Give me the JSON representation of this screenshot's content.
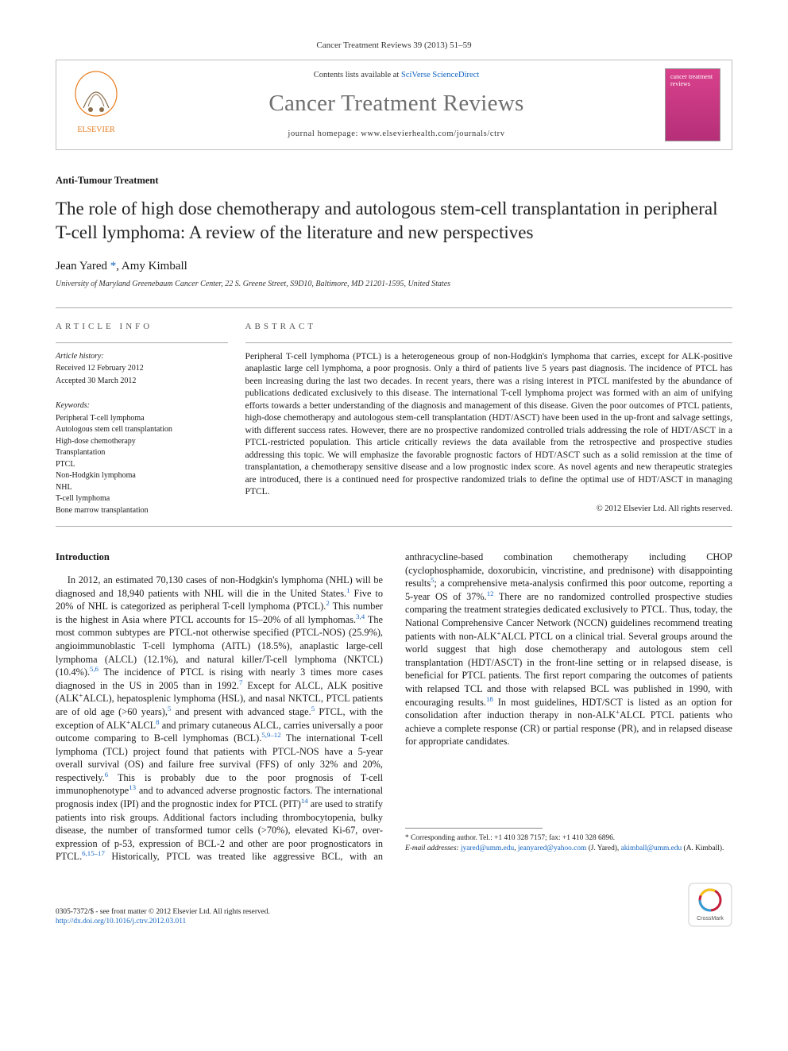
{
  "journal_ref": "Cancer Treatment Reviews 39 (2013) 51–59",
  "masthead": {
    "contents_prefix": "Contents lists available at ",
    "contents_link": "SciVerse ScienceDirect",
    "journal_name": "Cancer Treatment Reviews",
    "homepage_prefix": "journal homepage: ",
    "homepage_url": "www.elsevierhealth.com/journals/ctrv",
    "cover_title": "cancer treatment reviews"
  },
  "article_type": "Anti-Tumour Treatment",
  "title": "The role of high dose chemotherapy and autologous stem-cell transplantation in peripheral T-cell lymphoma: A review of the literature and new perspectives",
  "authors_html": "Jean Yared <a class='corr' href='#'>*</a>, Amy Kimball",
  "affiliation": "University of Maryland Greenebaum Cancer Center, 22 S. Greene Street, S9D10, Baltimore, MD 21201-1595, United States",
  "info_heading": "ARTICLE INFO",
  "abs_heading": "ABSTRACT",
  "history": {
    "label": "Article history:",
    "received": "Received 12 February 2012",
    "accepted": "Accepted 30 March 2012"
  },
  "keywords_label": "Keywords:",
  "keywords": [
    "Peripheral T-cell lymphoma",
    "Autologous stem cell transplantation",
    "High-dose chemotherapy",
    "Transplantation",
    "PTCL",
    "Non-Hodgkin lymphoma",
    "NHL",
    "T-cell lymphoma",
    "Bone marrow transplantation"
  ],
  "abstract": "Peripheral T-cell lymphoma (PTCL) is a heterogeneous group of non-Hodgkin's lymphoma that carries, except for ALK-positive anaplastic large cell lymphoma, a poor prognosis. Only a third of patients live 5 years past diagnosis. The incidence of PTCL has been increasing during the last two decades. In recent years, there was a rising interest in PTCL manifested by the abundance of publications dedicated exclusively to this disease. The international T-cell lymphoma project was formed with an aim of unifying efforts towards a better understanding of the diagnosis and management of this disease. Given the poor outcomes of PTCL patients, high-dose chemotherapy and autologous stem-cell transplantation (HDT/ASCT) have been used in the up-front and salvage settings, with different success rates. However, there are no prospective randomized controlled trials addressing the role of HDT/ASCT in a PTCL-restricted population. This article critically reviews the data available from the retrospective and prospective studies addressing this topic. We will emphasize the favorable prognostic factors of HDT/ASCT such as a solid remission at the time of transplantation, a chemotherapy sensitive disease and a low prognostic index score. As novel agents and new therapeutic strategies are introduced, there is a continued need for prospective randomized trials to define the optimal use of HDT/ASCT in managing PTCL.",
  "abs_copyright": "© 2012 Elsevier Ltd. All rights reserved.",
  "intro_heading": "Introduction",
  "intro_paragraph": "In 2012, an estimated 70,130 cases of non-Hodgkin's lymphoma (NHL) will be diagnosed and 18,940 patients with NHL will die in the United States.<sup>1</sup> Five to 20% of NHL is categorized as peripheral T-cell lymphoma (PTCL).<sup>2</sup> This number is the highest in Asia where PTCL accounts for 15–20% of all lymphomas.<sup>3,4</sup> The most common subtypes are PTCL-not otherwise specified (PTCL-NOS) (25.9%), angioimmunoblastic T-cell lymphoma (AITL) (18.5%), anaplastic large-cell lymphoma (ALCL) (12.1%), and natural killer/T-cell lymphoma (NKTCL) (10.4%).<sup>5,6</sup> The incidence of PTCL is rising with nearly 3 times more cases diagnosed in the US in 2005 than in 1992.<sup>7</sup> Except for ALCL, ALK positive (ALK<sup class='black'>+</sup>ALCL), hepatosplenic lymphoma (HSL), and nasal NKTCL, PTCL patients are of old age (>60 years),<sup>5</sup> and present with advanced stage.<sup>5</sup> PTCL, with the exception of ALK<sup class='black'>+</sup>ALCL<sup>8</sup> and primary cutaneous ALCL, carries universally a poor outcome comparing to B-cell lymphomas (BCL).<sup>5,9–12</sup> The international T-cell lymphoma (TCL) project found that patients with PTCL-NOS have a 5-year overall survival (OS) and failure free survival (FFS) of only 32% and 20%, respectively.<sup>6</sup> This is probably due to the poor prognosis of T-cell immunophenotype<sup>13</sup> and to advanced adverse prognostic factors. The international prognosis index (IPI) and the prognostic index for PTCL (PIT)<sup>14</sup> are used to stratify patients into risk groups. Additional factors including thrombocytopenia, bulky disease, the number of transformed tumor cells (>70%), elevated Ki-67, over-expression of p-53, expression of BCL-2 and other are poor prognosticators in PTCL.<sup>6,15–17</sup> Historically, PTCL was treated like aggressive BCL, with an anthracycline-based combination chemotherapy including CHOP (cyclophosphamide, doxorubicin, vincristine, and prednisone) with disappointing results<sup>5</sup>; a comprehensive meta-analysis confirmed this poor outcome, reporting a 5-year OS of 37%.<sup>12</sup> There are no randomized controlled prospective studies comparing the treatment strategies dedicated exclusively to PTCL. Thus, today, the National Comprehensive Cancer Network (NCCN) guidelines recommend treating patients with non-ALK<sup class='black'>+</sup>ALCL PTCL on a clinical trial. Several groups around the world suggest that high dose chemotherapy and autologous stem cell transplantation (HDT/ASCT) in the front-line setting or in relapsed disease, is beneficial for PTCL patients. The first report comparing the outcomes of patients with relapsed TCL and those with relapsed BCL was published in 1990, with encouraging results.<sup>18</sup> In most guidelines, HDT/SCT is listed as an option for consolidation after induction therapy in non-ALK<sup class='black'>+</sup>ALCL PTCL patients who achieve a complete response (CR) or partial response (PR), and in relapsed disease for appropriate candidates.",
  "footnotes": {
    "corr": "* Corresponding author. Tel.: +1 410 328 7157; fax: +1 410 328 6896.",
    "email_label": "E-mail addresses: ",
    "emails_html": "<a href='#'>jyared@umm.edu</a>, <a href='#'>jeanyared@yahoo.com</a> (J. Yared), <a href='#'>akimball@umm.edu</a> (A. Kimball)."
  },
  "footer": {
    "issn_line": "0305-7372/$ - see front matter © 2012 Elsevier Ltd. All rights reserved.",
    "doi_line": "http://dx.doi.org/10.1016/j.ctrv.2012.03.011"
  },
  "colors": {
    "link": "#1565c0",
    "grey_title": "#6f6f6f",
    "border": "#bfbfbf",
    "cover_top": "#d9418c",
    "cover_bottom": "#b52f78"
  }
}
